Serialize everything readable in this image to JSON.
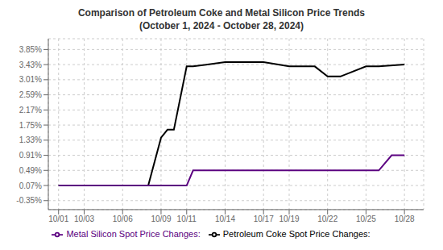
{
  "chart_data": {
    "type": "line",
    "title": "Comparison of Petroleum Coke and Metal Silicon Price Trends",
    "subtitle": "(October 1, 2024 - October 28, 2024)",
    "xlim": [
      0.2,
      29.5
    ],
    "xticks": [
      {
        "value": 1,
        "label": "10/01"
      },
      {
        "value": 3,
        "label": "10/03"
      },
      {
        "value": 6,
        "label": "10/06"
      },
      {
        "value": 9,
        "label": "10/09"
      },
      {
        "value": 11,
        "label": "10/11"
      },
      {
        "value": 14,
        "label": "10/14"
      },
      {
        "value": 17,
        "label": "10/17"
      },
      {
        "value": 19,
        "label": "10/19"
      },
      {
        "value": 22,
        "label": "10/22"
      },
      {
        "value": 25,
        "label": "10/25"
      },
      {
        "value": 28,
        "label": "10/28"
      }
    ],
    "ylim": [
      -0.6,
      4.15
    ],
    "yticks": [
      {
        "value": -0.35,
        "label": "-0.35%"
      },
      {
        "value": 0.07,
        "label": "0.07%"
      },
      {
        "value": 0.49,
        "label": "0.49%"
      },
      {
        "value": 0.91,
        "label": "0.91%"
      },
      {
        "value": 1.33,
        "label": "1.33%"
      },
      {
        "value": 1.75,
        "label": "1.75%"
      },
      {
        "value": 2.17,
        "label": "2.17%"
      },
      {
        "value": 2.59,
        "label": "2.59%"
      },
      {
        "value": 3.01,
        "label": "3.01%"
      },
      {
        "value": 3.43,
        "label": "3.43%"
      },
      {
        "value": 3.85,
        "label": "3.85%"
      }
    ],
    "grid": true,
    "series": [
      {
        "name": "Petroleum Coke Spot Price Changes:",
        "color": "#000000",
        "x": [
          1,
          6,
          7,
          8,
          9,
          9.5,
          10,
          11,
          11.5,
          14,
          17,
          19,
          19.5,
          21,
          22,
          22.5,
          23,
          25,
          26,
          28
        ],
        "values": [
          0.07,
          0.07,
          0.07,
          0.07,
          1.4,
          1.62,
          1.62,
          3.38,
          3.38,
          3.5,
          3.5,
          3.38,
          3.38,
          3.38,
          3.1,
          3.1,
          3.1,
          3.38,
          3.38,
          3.43
        ]
      },
      {
        "name": "Metal Silicon Spot Price Changes:",
        "color": "#5B0080",
        "x": [
          1,
          9,
          10,
          11,
          11.5,
          14,
          17,
          19,
          22,
          25,
          26,
          27,
          28
        ],
        "values": [
          0.07,
          0.07,
          0.07,
          0.07,
          0.49,
          0.49,
          0.49,
          0.49,
          0.49,
          0.49,
          0.49,
          0.91,
          0.91
        ]
      }
    ]
  }
}
